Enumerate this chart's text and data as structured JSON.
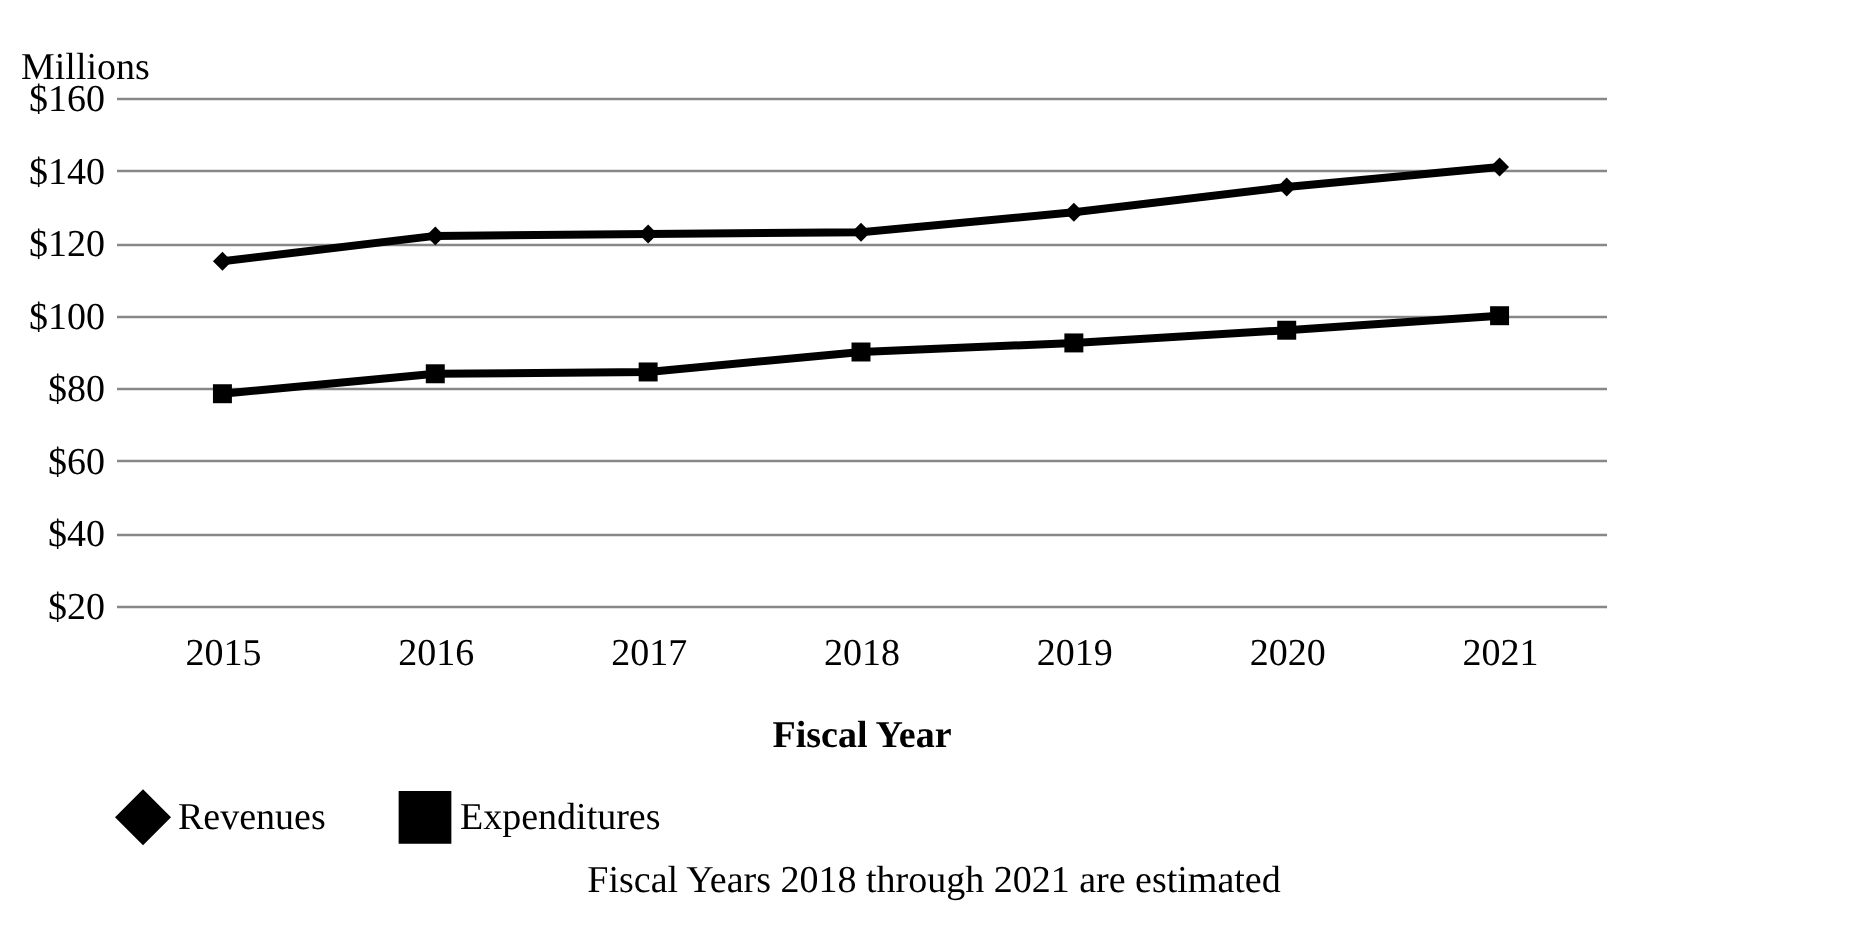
{
  "chart_data": {
    "type": "line",
    "xlabel": "Fiscal Year",
    "ylabel": "Millions",
    "categories": [
      "2015",
      "2016",
      "2017",
      "2018",
      "2019",
      "2020",
      "2021"
    ],
    "series": [
      {
        "name": "Revenues",
        "color": "#000000",
        "marker": "diamond",
        "values": [
          115,
          122,
          122.5,
          123,
          128.5,
          135.5,
          141
        ]
      },
      {
        "name": "Expenditures",
        "color": "#000000",
        "marker": "square",
        "values": [
          78.5,
          84,
          84.5,
          90,
          92.5,
          96,
          100
        ]
      }
    ],
    "ylim": [
      20,
      160
    ],
    "yticks": [
      {
        "value": 20,
        "label": "$20"
      },
      {
        "value": 40,
        "label": "$40"
      },
      {
        "value": 60,
        "label": "$60"
      },
      {
        "value": 80,
        "label": "$80"
      },
      {
        "value": 100,
        "label": "$100"
      },
      {
        "value": 120,
        "label": "$120"
      },
      {
        "value": 140,
        "label": "$140"
      },
      {
        "value": 160,
        "label": "$160"
      }
    ],
    "grid": "y",
    "legend": "bottom",
    "line_style": "solid",
    "annotations": [
      "Fiscal Years 2018 through 2021 are estimated"
    ]
  }
}
